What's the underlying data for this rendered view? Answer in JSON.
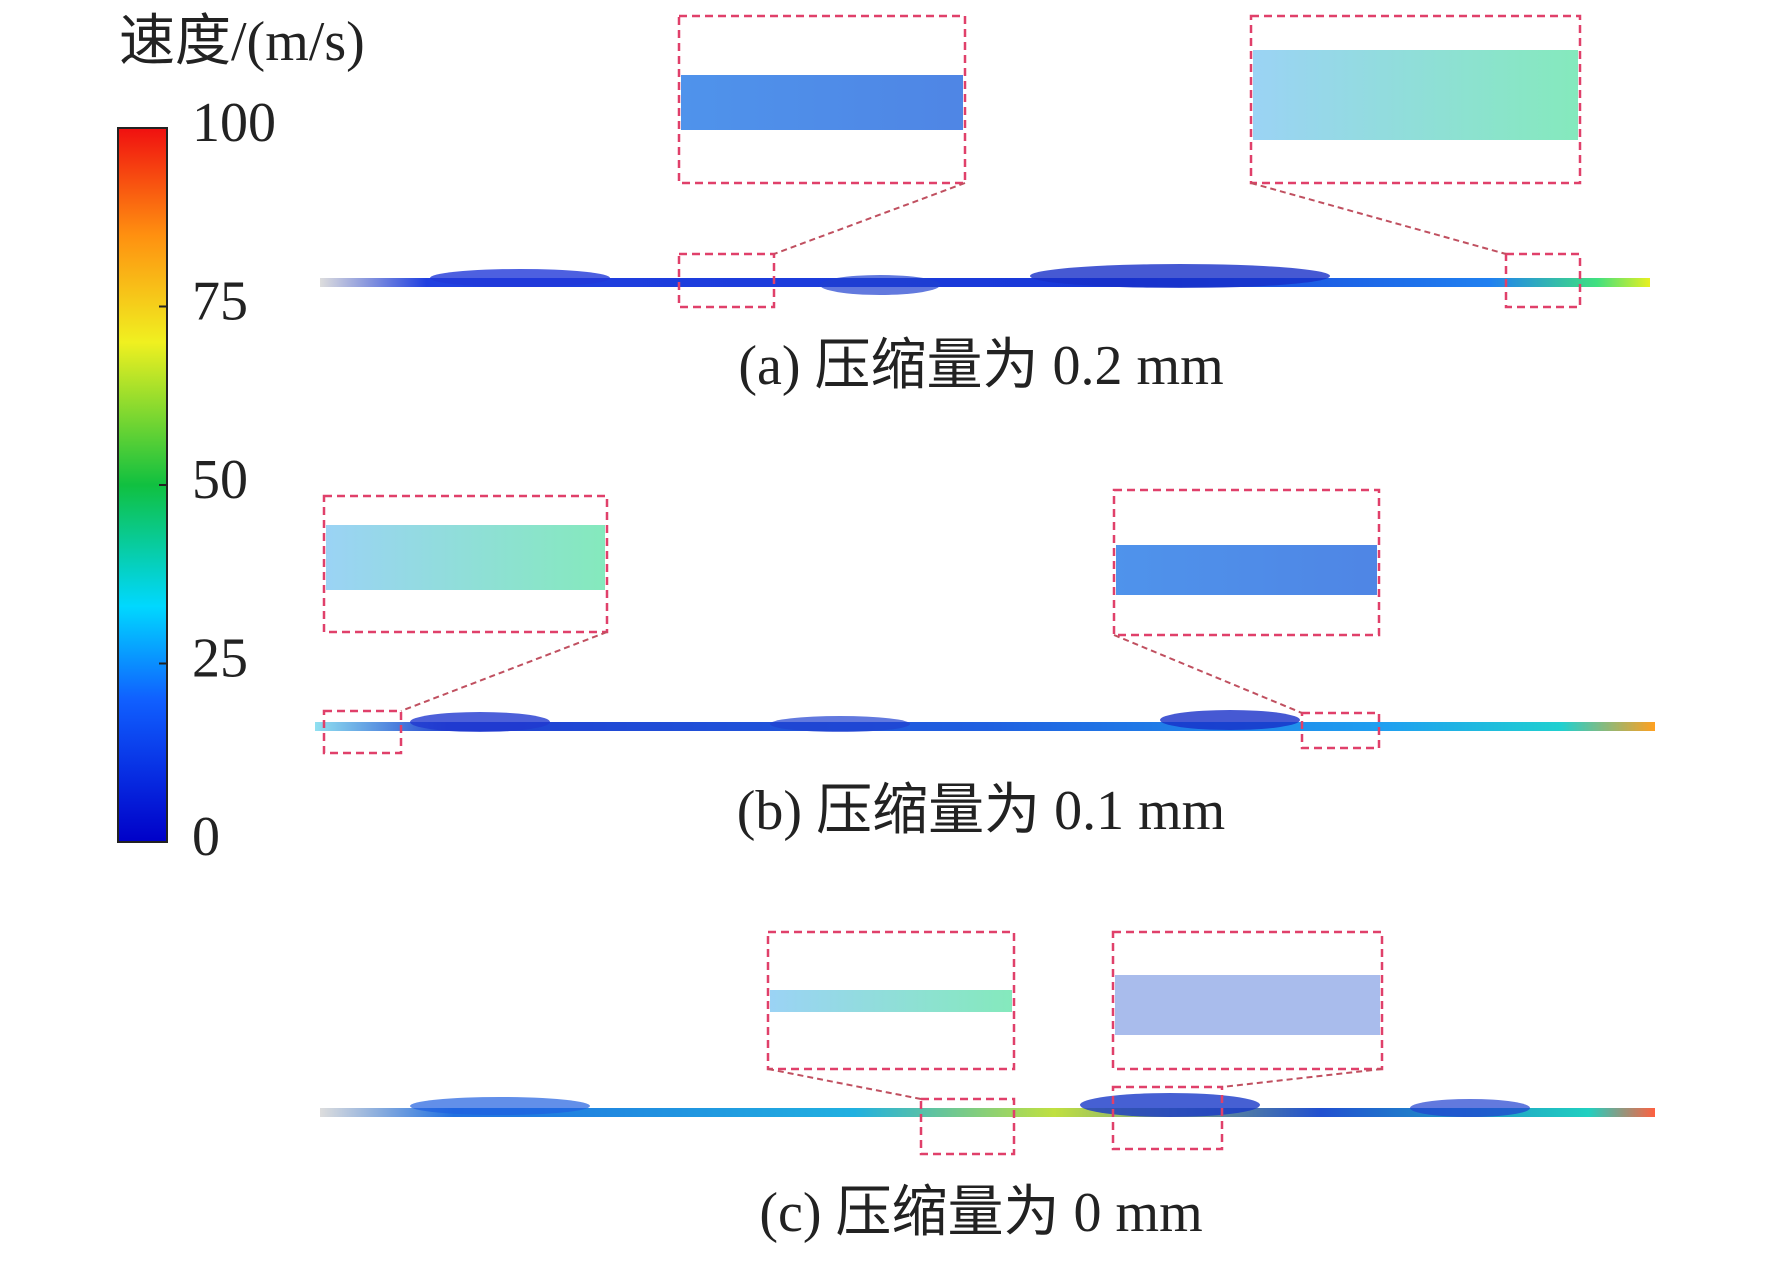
{
  "colorbar": {
    "title": "速度/(m/s)",
    "range": [
      0,
      100
    ],
    "ticks": [
      0,
      25,
      50,
      75,
      100
    ]
  },
  "panels": [
    {
      "caption": "(a) 压缩量为 0.2 mm"
    },
    {
      "caption": "(b) 压缩量为 0.1 mm"
    },
    {
      "caption": "(c) 压缩量为 0 mm"
    }
  ]
}
